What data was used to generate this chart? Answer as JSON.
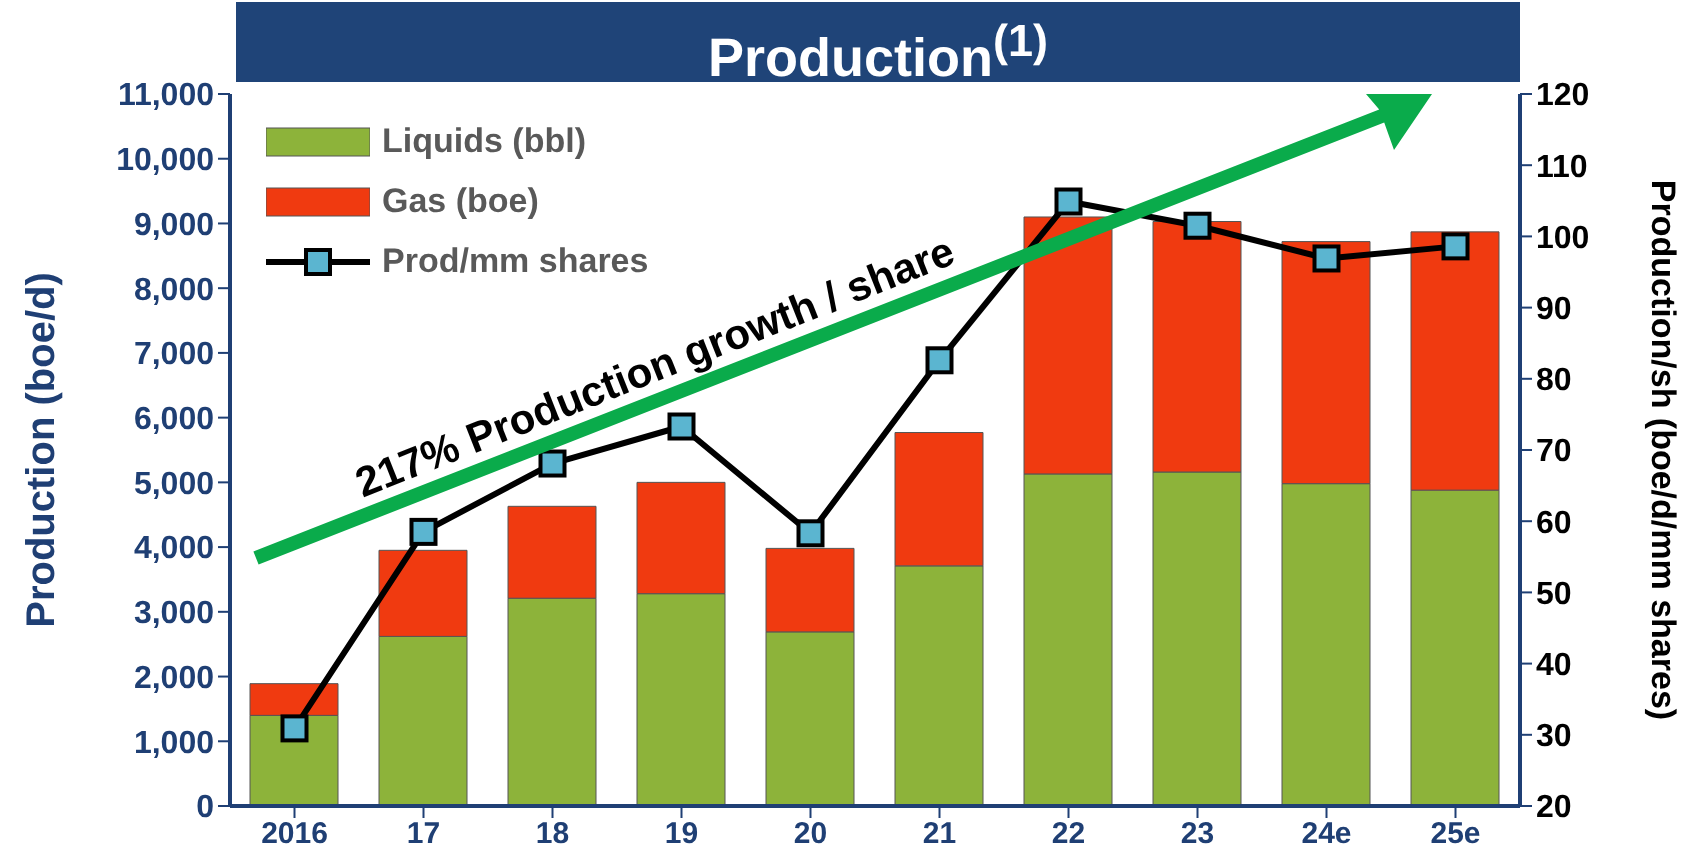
{
  "chart_data": {
    "type": "bar",
    "title": "Production$^{(1)}$",
    "ylabel": "Production (boe/d)",
    "y2label": "Production/sh (boe/d/mm shares)",
    "categories": [
      "2016",
      "17",
      "18",
      "19",
      "20",
      "21",
      "22",
      "23",
      "24e",
      "25e"
    ],
    "series": [
      {
        "name": "Liquids (bbl)",
        "color": "#8db33a",
        "values": [
          1400,
          2620,
          3210,
          3280,
          2690,
          3710,
          5130,
          5160,
          4980,
          4880
        ]
      },
      {
        "name": "Gas (boe)",
        "color": "#f03a10",
        "values": [
          490,
          1330,
          1420,
          1720,
          1290,
          2060,
          3970,
          3870,
          3740,
          3990
        ]
      },
      {
        "name": "Prod/mm shares",
        "type": "line",
        "axis": "y2",
        "color": "#000000",
        "values": [
          30.9,
          58.5,
          68.1,
          73.3,
          58.3,
          82.6,
          104.9,
          101.5,
          96.9,
          98.6
        ]
      }
    ],
    "stacked": true,
    "ylim": [
      0,
      11000
    ],
    "yticks": [
      0,
      {
        "value": 1000,
        "label": "1,000"
      },
      {
        "value": 2000,
        "label": "2,000"
      },
      {
        "value": 3000,
        "label": "3,000"
      },
      {
        "value": 4000,
        "label": "4,000"
      },
      {
        "value": 5000,
        "label": "5,000"
      },
      {
        "value": 6000,
        "label": "6,000"
      },
      {
        "value": 7000,
        "label": "7,000"
      },
      {
        "value": 8000,
        "label": "8,000"
      },
      {
        "value": 9000,
        "label": "9,000"
      },
      {
        "value": 10000,
        "label": "10,000"
      },
      {
        "value": 11000,
        "label": "11,000"
      }
    ],
    "y2lim": [
      20,
      120
    ],
    "y2ticks": [
      20,
      30,
      40,
      50,
      60,
      70,
      80,
      90,
      100,
      110,
      120
    ],
    "legend": "top left",
    "marker": "square",
    "annotations": [
      "217% Production growth / share"
    ]
  }
}
